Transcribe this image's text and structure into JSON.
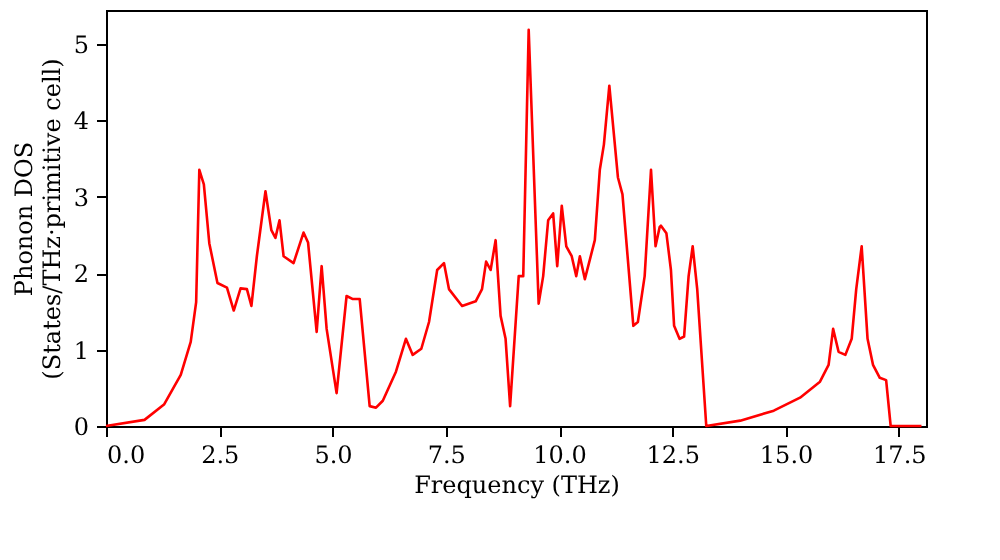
{
  "chart_data": {
    "type": "line",
    "xlabel": "Frequency (THz)",
    "ylabel": "Phonon DOS\n(States/THz·primitive cell)",
    "x": [
      0,
      0.85,
      1.28,
      1.65,
      1.87,
      1.99,
      2.06,
      2.16,
      2.28,
      2.46,
      2.67,
      2.82,
      2.97,
      3.11,
      3.21,
      3.33,
      3.52,
      3.65,
      3.74,
      3.83,
      3.92,
      4.14,
      4.36,
      4.46,
      4.65,
      4.76,
      4.87,
      5.09,
      5.31,
      5.45,
      5.6,
      5.82,
      5.96,
      6.11,
      6.4,
      6.62,
      6.77,
      6.96,
      7.13,
      7.31,
      7.46,
      7.57,
      7.86,
      8.16,
      8.3,
      8.39,
      8.49,
      8.6,
      8.71,
      8.82,
      8.92,
      9.11,
      9.21,
      9.33,
      9.55,
      9.65,
      9.76,
      9.87,
      9.96,
      10.06,
      10.16,
      10.28,
      10.38,
      10.46,
      10.57,
      10.79,
      10.9,
      10.99,
      11.11,
      11.3,
      11.4,
      11.64,
      11.74,
      11.89,
      12.03,
      12.13,
      12.22,
      12.25,
      12.37,
      12.47,
      12.54,
      12.66,
      12.76,
      12.86,
      12.95,
      13.05,
      13.25,
      14.0,
      14.74,
      15.32,
      15.76,
      15.95,
      16.05,
      16.17,
      16.32,
      16.46,
      16.56,
      16.68,
      16.81,
      16.93,
      17.08,
      17.22,
      17.32,
      18.0
    ],
    "series": [
      {
        "color": "#ff0000",
        "values": [
          0,
          0.08,
          0.28,
          0.67,
          1.1,
          1.62,
          3.35,
          3.16,
          2.39,
          1.87,
          1.81,
          1.51,
          1.8,
          1.79,
          1.57,
          2.22,
          3.07,
          2.56,
          2.46,
          2.69,
          2.22,
          2.13,
          2.53,
          2.4,
          1.23,
          2.09,
          1.27,
          0.43,
          1.7,
          1.66,
          1.66,
          0.26,
          0.24,
          0.33,
          0.71,
          1.14,
          0.93,
          1.01,
          1.36,
          2.04,
          2.13,
          1.79,
          1.57,
          1.63,
          1.79,
          2.15,
          2.04,
          2.43,
          1.44,
          1.14,
          0.26,
          1.96,
          1.96,
          5.18,
          1.6,
          1.96,
          2.69,
          2.78,
          2.09,
          2.88,
          2.35,
          2.22,
          1.96,
          2.22,
          1.92,
          2.43,
          3.35,
          3.68,
          4.45,
          3.25,
          3.03,
          1.31,
          1.36,
          1.96,
          3.35,
          2.35,
          2.6,
          2.62,
          2.52,
          2.04,
          1.31,
          1.14,
          1.17,
          1.96,
          2.35,
          1.79,
          0,
          0.07,
          0.2,
          0.37,
          0.58,
          0.8,
          1.27,
          0.97,
          0.93,
          1.14,
          1.79,
          2.35,
          1.14,
          0.8,
          0.63,
          0.6,
          0,
          0
        ]
      }
    ],
    "xlim": [
      0,
      18.1
    ],
    "ylim": [
      0,
      5.44
    ],
    "xticks": [
      {
        "value": 0,
        "label": "0.0"
      },
      {
        "value": 2.5,
        "label": "2.5"
      },
      {
        "value": 5,
        "label": "5.0"
      },
      {
        "value": 7.5,
        "label": "7.5"
      },
      {
        "value": 10,
        "label": "10.0"
      },
      {
        "value": 12.5,
        "label": "12.5"
      },
      {
        "value": 15,
        "label": "15.0"
      },
      {
        "value": 17.5,
        "label": "17.5"
      }
    ],
    "yticks": [
      0,
      1,
      2,
      3,
      4,
      5
    ],
    "grid": false,
    "line_style": "solid",
    "marker": "none"
  }
}
